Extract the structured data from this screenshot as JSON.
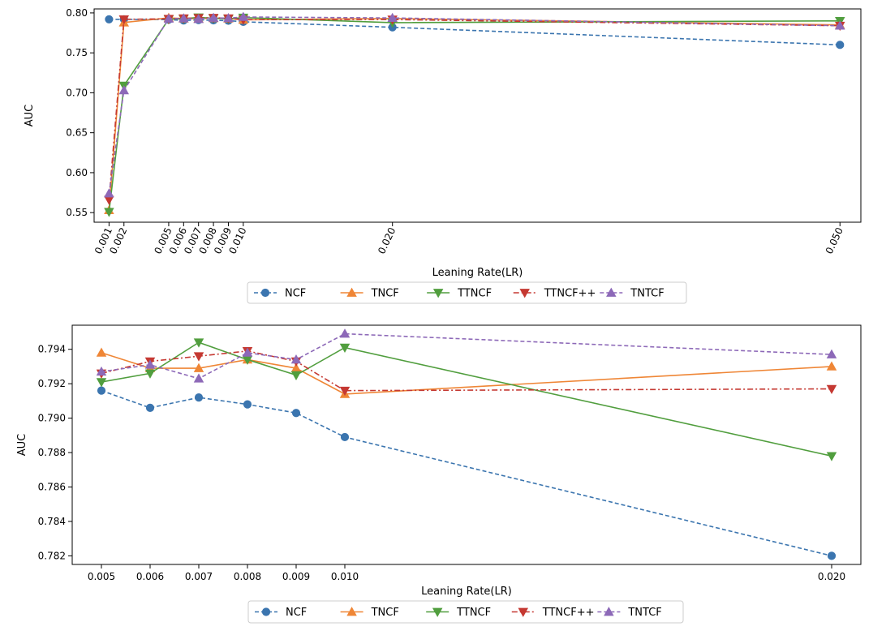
{
  "colors": {
    "NCF": "#3b75af",
    "TNCF": "#ef8636",
    "TTNCF": "#519e3e",
    "TTNCF++": "#c53932",
    "TNTCF": "#8d69b8"
  },
  "chart_data": [
    {
      "type": "line",
      "xlabel": "Leaning Rate(LR)",
      "ylabel": "AUC",
      "x": [
        0.001,
        0.002,
        0.005,
        0.006,
        0.007,
        0.008,
        0.009,
        0.01,
        0.02,
        0.05
      ],
      "xtick_labels": [
        "0.001",
        "0.002",
        "0.005",
        "0.006",
        "0.007",
        "0.008",
        "0.009",
        "0.010",
        "0.020",
        "0.050"
      ],
      "xlim": [
        0.0,
        0.0514
      ],
      "ylim": [
        0.538,
        0.805
      ],
      "yticks": [
        0.55,
        0.6,
        0.65,
        0.7,
        0.75,
        0.8
      ],
      "ytick_labels": [
        "0.55",
        "0.60",
        "0.65",
        "0.70",
        "0.75",
        "0.80"
      ],
      "legend_position": "below",
      "series": [
        {
          "name": "NCF",
          "marker": "circle",
          "dash": "dashed",
          "values": [
            0.792,
            0.792,
            0.7916,
            0.7906,
            0.7912,
            0.7908,
            0.7903,
            0.7889,
            0.782,
            0.76
          ]
        },
        {
          "name": "TNCF",
          "marker": "triangle-up",
          "dash": "solid",
          "values": [
            0.553,
            0.788,
            0.7938,
            0.7929,
            0.7929,
            0.7934,
            0.7929,
            0.7914,
            0.793,
            0.785
          ]
        },
        {
          "name": "TTNCF",
          "marker": "triangle-down",
          "dash": "solid",
          "values": [
            0.551,
            0.709,
            0.7921,
            0.7926,
            0.7944,
            0.7934,
            0.7925,
            0.7941,
            0.7878,
            0.79
          ]
        },
        {
          "name": "TTNCF++",
          "marker": "triangle-down",
          "dash": "dashdot",
          "values": [
            0.566,
            0.792,
            0.7926,
            0.7933,
            0.7936,
            0.7939,
            0.7933,
            0.7916,
            0.7917,
            0.784
          ]
        },
        {
          "name": "TNTCF",
          "marker": "triangle-up",
          "dash": "dashed",
          "values": [
            0.574,
            0.703,
            0.7927,
            0.7931,
            0.7923,
            0.7938,
            0.7934,
            0.7949,
            0.7937,
            0.784
          ]
        }
      ]
    },
    {
      "type": "line",
      "xlabel": "Leaning Rate(LR)",
      "ylabel": "AUC",
      "x": [
        0.005,
        0.006,
        0.007,
        0.008,
        0.009,
        0.01,
        0.02
      ],
      "xtick_labels": [
        "0.005",
        "0.006",
        "0.007",
        "0.008",
        "0.009",
        "0.010",
        "0.020"
      ],
      "xlim": [
        0.0044,
        0.0206
      ],
      "ylim": [
        0.7815,
        0.7954
      ],
      "yticks": [
        0.782,
        0.784,
        0.786,
        0.788,
        0.79,
        0.792,
        0.794
      ],
      "ytick_labels": [
        "0.782",
        "0.784",
        "0.786",
        "0.788",
        "0.790",
        "0.792",
        "0.794"
      ],
      "legend_position": "below",
      "series": [
        {
          "name": "NCF",
          "marker": "circle",
          "dash": "dashed",
          "values": [
            0.7916,
            0.7906,
            0.7912,
            0.7908,
            0.7903,
            0.7889,
            0.782
          ]
        },
        {
          "name": "TNCF",
          "marker": "triangle-up",
          "dash": "solid",
          "values": [
            0.7938,
            0.7929,
            0.7929,
            0.7934,
            0.7929,
            0.7914,
            0.793
          ]
        },
        {
          "name": "TTNCF",
          "marker": "triangle-down",
          "dash": "solid",
          "values": [
            0.7921,
            0.7926,
            0.7944,
            0.7934,
            0.7925,
            0.7941,
            0.7878
          ]
        },
        {
          "name": "TTNCF++",
          "marker": "triangle-down",
          "dash": "dashdot",
          "values": [
            0.7926,
            0.7933,
            0.7936,
            0.7939,
            0.7933,
            0.7916,
            0.7917
          ]
        },
        {
          "name": "TNTCF",
          "marker": "triangle-up",
          "dash": "dashed",
          "values": [
            0.7927,
            0.7931,
            0.7923,
            0.7938,
            0.7934,
            0.7949,
            0.7937
          ]
        }
      ]
    }
  ]
}
